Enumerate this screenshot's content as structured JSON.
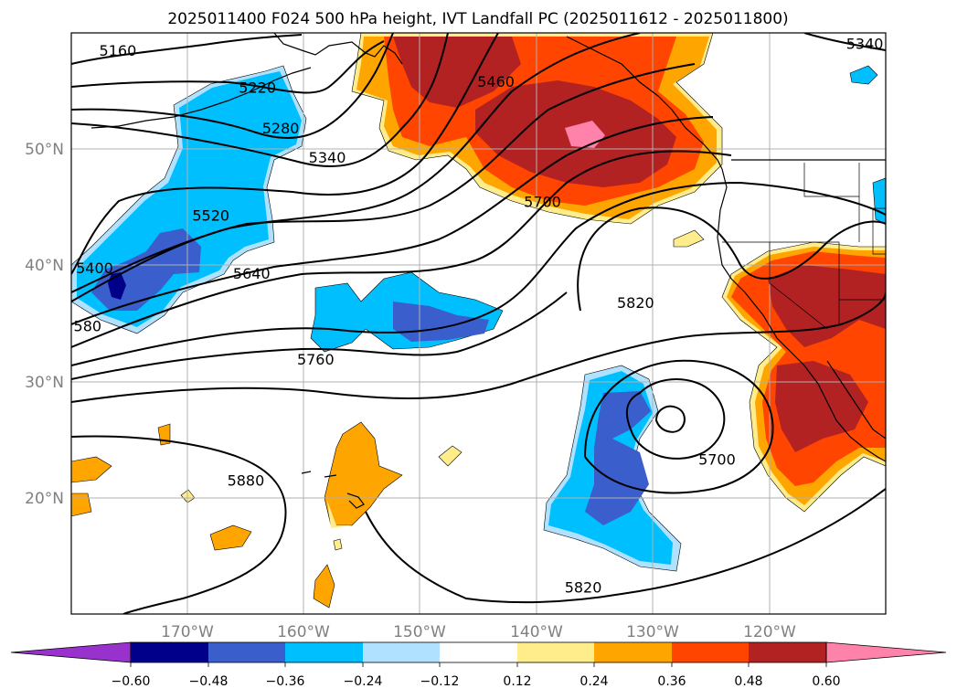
{
  "title": "2025011400 F024 500 hPa height, IVT Landfall PC (2025011612 - 2025011800)",
  "map": {
    "lon_range": [
      -180,
      -110
    ],
    "lat_range": [
      10,
      60
    ],
    "grid": true,
    "lon_ticks": [
      {
        "value": -170,
        "label": "170°W"
      },
      {
        "value": -160,
        "label": "160°W"
      },
      {
        "value": -150,
        "label": "150°W"
      },
      {
        "value": -140,
        "label": "140°W"
      },
      {
        "value": -130,
        "label": "130°W"
      },
      {
        "value": -120,
        "label": "120°W"
      }
    ],
    "lat_ticks": [
      {
        "value": 50,
        "label": "50°N"
      },
      {
        "value": 40,
        "label": "40°N"
      },
      {
        "value": 30,
        "label": "30°N"
      },
      {
        "value": 20,
        "label": "20°N"
      }
    ],
    "contour_labels": [
      {
        "text": "5160",
        "lon": -176,
        "lat": 58.2
      },
      {
        "text": "5220",
        "lon": -164,
        "lat": 55.0
      },
      {
        "text": "5280",
        "lon": -162,
        "lat": 51.5
      },
      {
        "text": "5340",
        "lon": -158,
        "lat": 49.0
      },
      {
        "text": "5340",
        "lon": -111.8,
        "lat": 58.8
      },
      {
        "text": "5460",
        "lon": -143.5,
        "lat": 55.5
      },
      {
        "text": "5700",
        "lon": -139.5,
        "lat": 45.2
      },
      {
        "text": "5520",
        "lon": -168,
        "lat": 44.0
      },
      {
        "text": "5400",
        "lon": -178,
        "lat": 39.5
      },
      {
        "text": "5640",
        "lon": -164.5,
        "lat": 39.0
      },
      {
        "text": "580",
        "lon": -178.6,
        "lat": 34.5
      },
      {
        "text": "5820",
        "lon": -131.5,
        "lat": 36.5
      },
      {
        "text": "5760",
        "lon": -159,
        "lat": 31.6
      },
      {
        "text": "5880",
        "lon": -165,
        "lat": 21.2
      },
      {
        "text": "5700",
        "lon": -124.5,
        "lat": 23.0
      },
      {
        "text": "5820",
        "lon": -136,
        "lat": 12.0
      }
    ]
  },
  "colorbar": {
    "levels": [
      "−0.60",
      "−0.48",
      "−0.36",
      "−0.24",
      "−0.12",
      "0.12",
      "0.24",
      "0.36",
      "0.48",
      "0.60"
    ],
    "colors": [
      "#9932cc",
      "#00008b",
      "#3a5fcd",
      "#00bfff",
      "#b0e2ff",
      "#ffffff",
      "#ffec8b",
      "#ffa500",
      "#ff4500",
      "#b22222",
      "#ff82ab"
    ],
    "extend": "both"
  }
}
